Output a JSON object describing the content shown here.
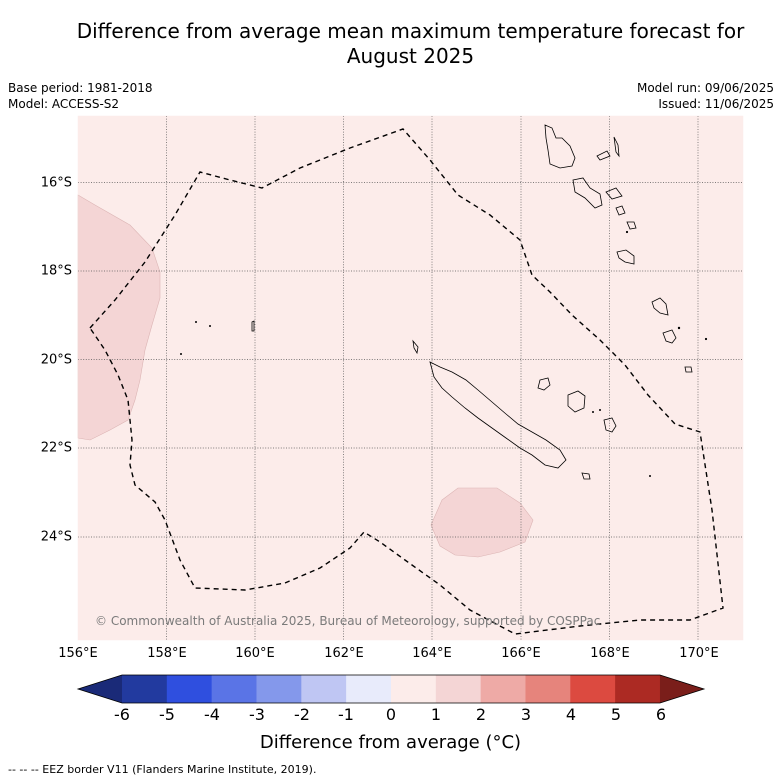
{
  "title_line1": "Difference from average mean maximum temperature forecast for",
  "title_line2": "August 2025",
  "base_period": "Base period: 1981-2018",
  "model": "Model: ACCESS-S2",
  "model_run": "Model run: 09/06/2025",
  "issued": "Issued: 11/06/2025",
  "x_ticks": [
    "156°E",
    "158°E",
    "160°E",
    "162°E",
    "164°E",
    "166°E",
    "168°E",
    "170°E"
  ],
  "y_ticks": [
    "16°S",
    "18°S",
    "20°S",
    "22°S",
    "24°S"
  ],
  "copyright": "© Commonwealth of Australia 2025, Bureau of Meteorology, supported by COSPPac",
  "colorbar": {
    "ticks": [
      "-6",
      "-5",
      "-4",
      "-3",
      "-2",
      "-1",
      "0",
      "1",
      "2",
      "3",
      "4",
      "5",
      "6"
    ],
    "colors": [
      "#223a9f",
      "#2f4fdf",
      "#5a74e6",
      "#8498eb",
      "#bfc6f3",
      "#e8ebfb",
      "#fcecea",
      "#f4d5d5",
      "#eeaaa6",
      "#e6847c",
      "#dc4a40",
      "#ac2a23"
    ],
    "under_color": "#1a2a78",
    "over_color": "#7a1e1a",
    "label": "Difference from average (°C)"
  },
  "field_colors": {
    "background_class": "#fcecea",
    "warm_class": "#f4d5d5"
  },
  "footer": "--  --  -- EEZ border V11 (Flanders Marine Institute, 2019)."
}
